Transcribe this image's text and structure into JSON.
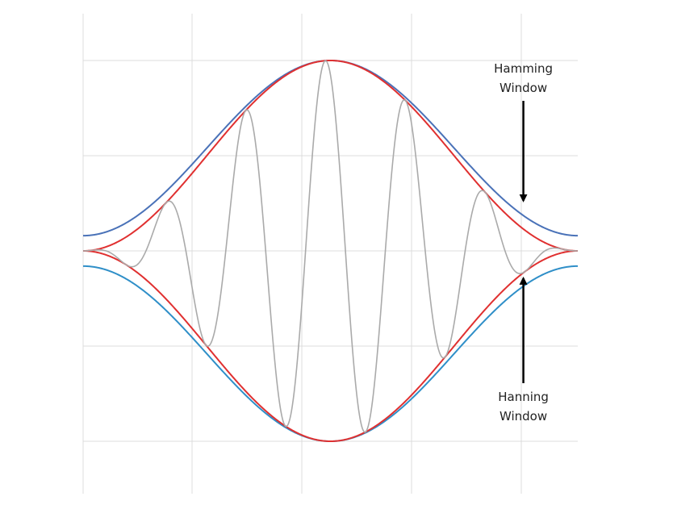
{
  "chart_data": {
    "type": "line",
    "title": "",
    "xlabel": "",
    "ylabel": "",
    "xlim": [
      0,
      1
    ],
    "ylim": [
      -1.1,
      1.1
    ],
    "grid": true,
    "legend": "none",
    "series": [
      {
        "key": "hamming_upper",
        "color": "#4a72b8",
        "formula": "0.54-0.46cos(2*pi*x)",
        "sign": 1
      },
      {
        "key": "hamming_lower",
        "color": "#2f8fc8",
        "formula": "0.54-0.46cos(2*pi*x)",
        "sign": -1
      },
      {
        "key": "hanning_upper",
        "color": "#e03030",
        "formula": "0.5-0.5cos(2*pi*x)",
        "sign": 1
      },
      {
        "key": "hanning_lower",
        "color": "#e03030",
        "formula": "0.5-0.5cos(2*pi*x)",
        "sign": -1
      },
      {
        "key": "windowed_signal",
        "color": "#aaaaaa",
        "formula": "hanning(x)*cos(2*pi*6.2*(x-0.49))",
        "cycles": 6.2,
        "phase_center": 0.49
      }
    ],
    "annotations": [
      {
        "key": "hamming",
        "lines": [
          "Hamming",
          "Window"
        ],
        "arrow_target": [
          0.89,
          0.255
        ],
        "direction": "down"
      },
      {
        "key": "hanning",
        "lines": [
          "Hanning",
          "Window"
        ],
        "arrow_target": [
          0.89,
          -0.135
        ],
        "direction": "up"
      }
    ]
  }
}
